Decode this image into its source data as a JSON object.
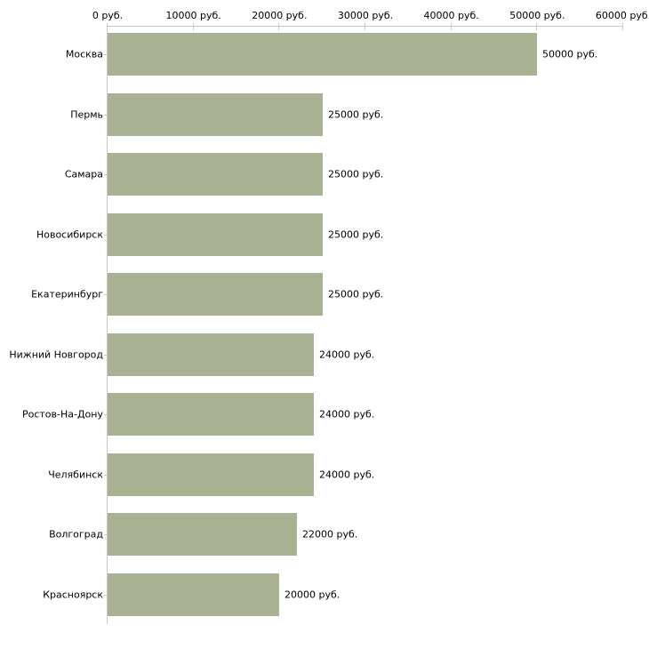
{
  "chart_data": {
    "type": "bar",
    "orientation": "horizontal",
    "title": "",
    "xlabel": "",
    "ylabel": "",
    "unit": "руб.",
    "categories": [
      "Москва",
      "Пермь",
      "Самара",
      "Новосибирск",
      "Екатеринбург",
      "Нижний Новгород",
      "Ростов-На-Дону",
      "Челябинск",
      "Волгоград",
      "Красноярск"
    ],
    "values": [
      50000,
      25000,
      25000,
      25000,
      25000,
      24000,
      24000,
      24000,
      22000,
      20000
    ],
    "value_labels": [
      "50000 руб.",
      "25000 руб.",
      "25000 руб.",
      "25000 руб.",
      "25000 руб.",
      "24000 руб.",
      "24000 руб.",
      "24000 руб.",
      "22000 руб.",
      "20000 руб."
    ],
    "x_axis": {
      "position": "top",
      "range": [
        0,
        60000
      ],
      "ticks": [
        0,
        10000,
        20000,
        30000,
        40000,
        50000,
        60000
      ],
      "tick_labels": [
        "0 руб.",
        "10000 руб.",
        "20000 руб.",
        "30000 руб.",
        "40000 руб.",
        "50000 руб.",
        "60000 руб."
      ]
    },
    "legend": null,
    "grid": false,
    "colors": {
      "bar": "#a8b192",
      "axis_line": "#c8c8c8",
      "tick": "#c9cdb2",
      "text": "#000000",
      "background": "#ffffff"
    }
  }
}
